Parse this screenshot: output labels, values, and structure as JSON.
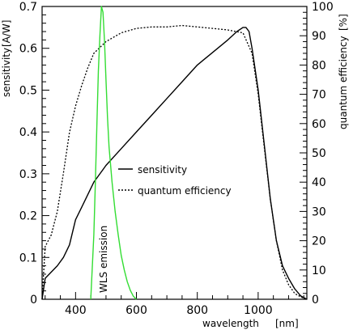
{
  "chart_data": {
    "type": "line",
    "xlabel": "wavelength",
    "xlabel_unit": "[nm]",
    "ylabel": "sensitivity",
    "ylabel_unit": "[A/W]",
    "y2label": "quantum efficiency",
    "y2label_unit": "[%]",
    "xlim": [
      290,
      1160
    ],
    "ylim": [
      0,
      0.7
    ],
    "y2lim": [
      0,
      100
    ],
    "x_ticks": [
      400,
      600,
      800,
      1000
    ],
    "x_tick_labels": [
      "400",
      "600",
      "800",
      "1000"
    ],
    "y_ticks": [
      0,
      0.1,
      0.2,
      0.3,
      0.4,
      0.5,
      0.6,
      0.7
    ],
    "y_tick_labels": [
      "0",
      "0.1",
      "0.2",
      "0.3",
      "0.4",
      "0.5",
      "0.6",
      "0.7"
    ],
    "y2_ticks": [
      0,
      10,
      20,
      30,
      40,
      50,
      60,
      70,
      80,
      90,
      100
    ],
    "y2_tick_labels": [
      "0",
      "10",
      "20",
      "30",
      "40",
      "50",
      "60",
      "70",
      "80",
      "90",
      "100"
    ],
    "grid": false,
    "legend": {
      "placement": "center",
      "entries": [
        "sensitivity",
        "quantum efficiency"
      ]
    },
    "annotation": "WLS emission",
    "series": [
      {
        "name": "sensitivity",
        "axis": "left",
        "color": "#000000",
        "dash": "solid",
        "x": [
          290,
          300,
          320,
          340,
          360,
          380,
          400,
          420,
          440,
          460,
          480,
          500,
          550,
          600,
          650,
          700,
          750,
          800,
          850,
          900,
          930,
          950,
          960,
          970,
          980,
          1000,
          1020,
          1040,
          1060,
          1080,
          1100,
          1120,
          1140,
          1160
        ],
        "values": [
          0.0,
          0.05,
          0.065,
          0.08,
          0.1,
          0.13,
          0.19,
          0.22,
          0.25,
          0.28,
          0.3,
          0.32,
          0.36,
          0.4,
          0.44,
          0.48,
          0.52,
          0.56,
          0.59,
          0.62,
          0.64,
          0.65,
          0.65,
          0.64,
          0.6,
          0.5,
          0.37,
          0.24,
          0.14,
          0.08,
          0.05,
          0.025,
          0.008,
          0.0
        ]
      },
      {
        "name": "quantum efficiency",
        "axis": "right",
        "color": "#000000",
        "dash": "dotted",
        "x": [
          290,
          300,
          320,
          340,
          360,
          380,
          400,
          420,
          440,
          460,
          480,
          500,
          550,
          600,
          650,
          700,
          750,
          800,
          850,
          900,
          950,
          980,
          1000,
          1020,
          1040,
          1060,
          1080,
          1100,
          1120,
          1140,
          1160
        ],
        "values": [
          0.0,
          18,
          22,
          30,
          43,
          57,
          66,
          73,
          79,
          84,
          86,
          88,
          91,
          92.5,
          93,
          93,
          93.5,
          93,
          92.5,
          92,
          91,
          84,
          70,
          52,
          34,
          20,
          10,
          5,
          2,
          0.8,
          0.0
        ]
      },
      {
        "name": "WLS emission",
        "axis": "right",
        "color": "#33dd33",
        "dash": "solid",
        "x": [
          450,
          460,
          465,
          470,
          475,
          480,
          485,
          490,
          495,
          500,
          505,
          510,
          520,
          530,
          540,
          550,
          560,
          570,
          580,
          590,
          600
        ],
        "values": [
          0,
          22,
          40,
          60,
          78,
          90,
          100,
          98,
          88,
          75,
          62,
          52,
          40,
          30,
          22,
          15,
          10,
          6,
          3,
          1,
          0
        ]
      }
    ]
  }
}
